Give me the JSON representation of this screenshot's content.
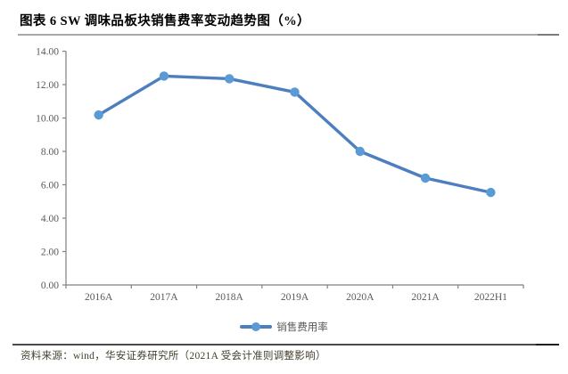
{
  "figure": {
    "title": "图表 6 SW 调味品板块销售费率变动趋势图（%）",
    "source_note": "资料来源：wind，华安证券研究所（2021A 受会计准则调整影响）"
  },
  "chart_data": {
    "type": "line",
    "title": "SW调味品板块销售费率变动趋势图（%）",
    "categories": [
      "2016A",
      "2017A",
      "2018A",
      "2019A",
      "2020A",
      "2021A",
      "2022H1"
    ],
    "series": [
      {
        "name": "销售费用率",
        "values": [
          10.18,
          12.51,
          12.35,
          11.55,
          8.0,
          6.4,
          5.54
        ]
      }
    ],
    "xlabel": "",
    "ylabel": "",
    "ylim": [
      0,
      14
    ],
    "yticks": [
      0,
      2,
      4,
      6,
      8,
      10,
      12,
      14
    ],
    "ytick_labels": [
      "0.00",
      "2.00",
      "4.00",
      "6.00",
      "8.00",
      "10.00",
      "12.00",
      "14.00"
    ],
    "grid": false,
    "legend_position": "bottom",
    "colors": {
      "line": "#4d7ebf",
      "marker": "#5b9bd5",
      "axis": "#808080",
      "tick_label": "#595959"
    }
  }
}
